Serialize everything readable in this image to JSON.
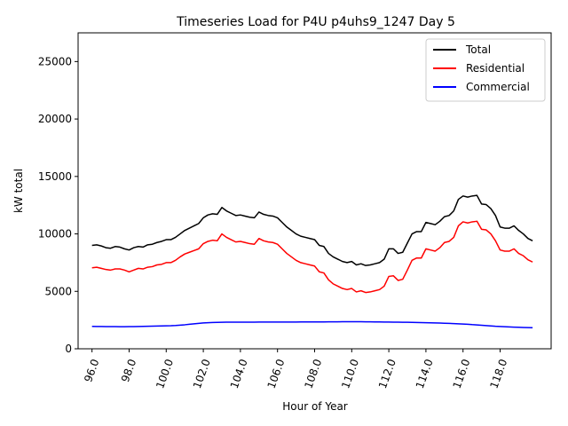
{
  "chart_data": {
    "type": "line",
    "title": "Timeseries Load for P4U p4uhs9_1247  Day 5",
    "xlabel": "Hour of Year",
    "ylabel": "kW total",
    "xlim": [
      95.25,
      120.75
    ],
    "ylim": [
      0,
      27500
    ],
    "xticks": [
      96,
      98,
      100,
      102,
      104,
      106,
      108,
      110,
      112,
      114,
      116,
      118
    ],
    "xtick_labels": [
      "96.0",
      "98.0",
      "100.0",
      "102.0",
      "104.0",
      "106.0",
      "108.0",
      "110.0",
      "112.0",
      "114.0",
      "116.0",
      "118.0"
    ],
    "yticks": [
      0,
      5000,
      10000,
      15000,
      20000,
      25000
    ],
    "ytick_labels": [
      "0",
      "5000",
      "10000",
      "15000",
      "20000",
      "25000"
    ],
    "legend_position": "top-right",
    "x": [
      96.0,
      96.25,
      96.5,
      96.75,
      97.0,
      97.25,
      97.5,
      97.75,
      98.0,
      98.25,
      98.5,
      98.75,
      99.0,
      99.25,
      99.5,
      99.75,
      100.0,
      100.25,
      100.5,
      100.75,
      101.0,
      101.25,
      101.5,
      101.75,
      102.0,
      102.25,
      102.5,
      102.75,
      103.0,
      103.25,
      103.5,
      103.75,
      104.0,
      104.25,
      104.5,
      104.75,
      105.0,
      105.25,
      105.5,
      105.75,
      106.0,
      106.25,
      106.5,
      106.75,
      107.0,
      107.25,
      107.5,
      107.75,
      108.0,
      108.25,
      108.5,
      108.75,
      109.0,
      109.25,
      109.5,
      109.75,
      110.0,
      110.25,
      110.5,
      110.75,
      111.0,
      111.25,
      111.5,
      111.75,
      112.0,
      112.25,
      112.5,
      112.75,
      113.0,
      113.25,
      113.5,
      113.75,
      114.0,
      114.25,
      114.5,
      114.75,
      115.0,
      115.25,
      115.5,
      115.75,
      116.0,
      116.25,
      116.5,
      116.75,
      117.0,
      117.25,
      117.5,
      117.75,
      118.0,
      118.25,
      118.5,
      118.75,
      119.0,
      119.25,
      119.5,
      119.75
    ],
    "series": [
      {
        "name": "Total",
        "color": "#000000",
        "values": [
          9000,
          9050,
          8950,
          8800,
          8750,
          8900,
          8850,
          8700,
          8600,
          8800,
          8900,
          8850,
          9050,
          9100,
          9250,
          9350,
          9500,
          9500,
          9700,
          10000,
          10300,
          10500,
          10700,
          10900,
          11400,
          11650,
          11750,
          11700,
          12300,
          12000,
          11800,
          11600,
          11650,
          11550,
          11450,
          11400,
          11900,
          11700,
          11600,
          11550,
          11400,
          11000,
          10600,
          10300,
          10000,
          9800,
          9700,
          9600,
          9500,
          9000,
          8900,
          8300,
          8000,
          7800,
          7600,
          7500,
          7600,
          7300,
          7400,
          7250,
          7300,
          7400,
          7500,
          7800,
          8700,
          8700,
          8300,
          8400,
          9200,
          10000,
          10200,
          10200,
          11000,
          10900,
          10800,
          11100,
          11500,
          11600,
          12000,
          13000,
          13300,
          13200,
          13300,
          13350,
          12600,
          12550,
          12200,
          11600,
          10600,
          10500,
          10500,
          10700,
          10300,
          10000,
          9600,
          9400
        ]
      },
      {
        "name": "Residential",
        "color": "#ff0000",
        "values": [
          7050,
          7100,
          7000,
          6900,
          6850,
          6950,
          6950,
          6850,
          6700,
          6850,
          7000,
          6950,
          7100,
          7150,
          7300,
          7350,
          7500,
          7500,
          7700,
          8000,
          8250,
          8400,
          8550,
          8700,
          9150,
          9350,
          9450,
          9400,
          10000,
          9700,
          9500,
          9300,
          9350,
          9250,
          9150,
          9100,
          9600,
          9400,
          9300,
          9250,
          9100,
          8700,
          8300,
          8000,
          7700,
          7500,
          7400,
          7300,
          7200,
          6700,
          6600,
          6000,
          5650,
          5450,
          5250,
          5150,
          5250,
          4950,
          5050,
          4900,
          4950,
          5050,
          5150,
          5450,
          6300,
          6350,
          5950,
          6050,
          6850,
          7700,
          7900,
          7900,
          8700,
          8600,
          8500,
          8800,
          9250,
          9350,
          9700,
          10700,
          11050,
          10950,
          11050,
          11100,
          10400,
          10350,
          10000,
          9400,
          8600,
          8500,
          8500,
          8700,
          8300,
          8100,
          7750,
          7550
        ]
      },
      {
        "name": "Commercial",
        "color": "#0000ff",
        "values": [
          1950,
          1945,
          1940,
          1935,
          1930,
          1930,
          1925,
          1925,
          1930,
          1935,
          1940,
          1950,
          1960,
          1970,
          1980,
          1990,
          2000,
          2010,
          2030,
          2060,
          2090,
          2130,
          2170,
          2210,
          2250,
          2270,
          2290,
          2300,
          2310,
          2315,
          2320,
          2320,
          2320,
          2320,
          2320,
          2320,
          2325,
          2325,
          2325,
          2325,
          2325,
          2325,
          2330,
          2330,
          2330,
          2335,
          2335,
          2335,
          2335,
          2340,
          2340,
          2345,
          2345,
          2350,
          2355,
          2360,
          2360,
          2360,
          2355,
          2350,
          2345,
          2340,
          2335,
          2330,
          2325,
          2320,
          2315,
          2310,
          2305,
          2300,
          2290,
          2280,
          2270,
          2260,
          2250,
          2240,
          2225,
          2210,
          2190,
          2170,
          2150,
          2130,
          2100,
          2080,
          2050,
          2020,
          1990,
          1960,
          1940,
          1920,
          1900,
          1885,
          1870,
          1855,
          1840,
          1830
        ]
      }
    ]
  }
}
